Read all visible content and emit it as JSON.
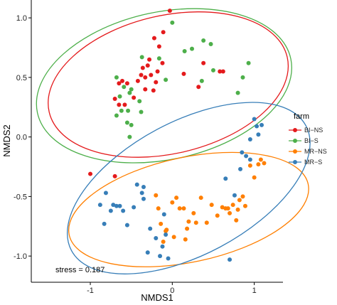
{
  "chart_data": {
    "type": "scatter",
    "xlabel": "NMDS1",
    "ylabel": "NMDS2",
    "xlim": [
      -1.72,
      1.35
    ],
    "ylim": [
      -1.22,
      1.15
    ],
    "x_ticks": [
      "-1",
      "0",
      "1"
    ],
    "y_ticks": [
      "1.0",
      "0.5",
      "0.0",
      "-0.5",
      "-1.0"
    ],
    "x_tick_values": [
      -1,
      0,
      1
    ],
    "y_tick_values": [
      1.0,
      0.5,
      0.0,
      -0.5,
      -1.0
    ],
    "grid": false,
    "legend": {
      "title": "farm",
      "placement": "right"
    },
    "annotation": "stress = 0.187",
    "series": [
      {
        "name": "BI−NS",
        "color": "#e41a1c",
        "points": [
          [
            -0.7,
            0.32
          ],
          [
            -0.65,
            0.45
          ],
          [
            -0.61,
            0.47
          ],
          [
            -0.55,
            0.45
          ],
          [
            -0.42,
            0.47
          ],
          [
            -0.38,
            0.52
          ],
          [
            -0.36,
            0.58
          ],
          [
            -0.33,
            0.5
          ],
          [
            -0.3,
            0.6
          ],
          [
            -0.28,
            0.65
          ],
          [
            -0.26,
            0.52
          ],
          [
            -0.23,
            0.39
          ],
          [
            -0.2,
            0.46
          ],
          [
            -0.18,
            0.55
          ],
          [
            -0.16,
            0.76
          ],
          [
            -0.12,
            0.62
          ],
          [
            -0.11,
            0.88
          ],
          [
            -0.03,
            1.06
          ],
          [
            -0.65,
            0.27
          ],
          [
            -0.58,
            0.27
          ],
          [
            -0.47,
            0.33
          ],
          [
            -0.33,
            0.4
          ],
          [
            0.14,
            0.53
          ],
          [
            0.32,
            0.42
          ],
          [
            0.38,
            0.62
          ],
          [
            0.58,
            0.55
          ],
          [
            0.62,
            0.55
          ],
          [
            -0.22,
            0.83
          ],
          [
            -1.0,
            -0.31
          ],
          [
            -0.7,
            -0.33
          ]
        ]
      },
      {
        "name": "BI−S",
        "color": "#4daf4a",
        "points": [
          [
            -0.68,
            0.5
          ],
          [
            -0.64,
            0.34
          ],
          [
            -0.62,
            0.22
          ],
          [
            -0.59,
            0.42
          ],
          [
            -0.54,
            0.22
          ],
          [
            -0.52,
            0.37
          ],
          [
            -0.5,
            0.4
          ],
          [
            -0.4,
            0.3
          ],
          [
            -0.38,
            0.21
          ],
          [
            -0.37,
            0.67
          ],
          [
            -0.16,
            0.66
          ],
          [
            -0.08,
            0.48
          ],
          [
            0.0,
            0.96
          ],
          [
            0.15,
            0.72
          ],
          [
            0.24,
            0.74
          ],
          [
            0.36,
            0.47
          ],
          [
            0.38,
            0.81
          ],
          [
            0.47,
            0.78
          ],
          [
            0.86,
            0.5
          ],
          [
            0.93,
            0.62
          ],
          [
            -0.68,
            0.18
          ],
          [
            -0.55,
            0.12
          ],
          [
            -0.52,
            0.0
          ],
          [
            0.5,
            0.56
          ],
          [
            0.8,
            0.37
          ],
          [
            -0.5,
            0.1
          ]
        ]
      },
      {
        "name": "MR−NS",
        "color": "#ff7f00",
        "points": [
          [
            -0.2,
            -0.49
          ],
          [
            -0.17,
            -0.6
          ],
          [
            -0.14,
            -0.73
          ],
          [
            -0.07,
            -0.78
          ],
          [
            0.0,
            -0.55
          ],
          [
            0.05,
            -0.51
          ],
          [
            0.09,
            -0.6
          ],
          [
            0.14,
            -0.6
          ],
          [
            0.16,
            -0.86
          ],
          [
            0.2,
            -0.71
          ],
          [
            0.26,
            -0.64
          ],
          [
            0.29,
            -0.72
          ],
          [
            0.35,
            -0.51
          ],
          [
            0.42,
            -0.72
          ],
          [
            0.48,
            -0.57
          ],
          [
            0.55,
            -0.66
          ],
          [
            0.61,
            -0.59
          ],
          [
            0.65,
            -0.6
          ],
          [
            0.68,
            -0.6
          ],
          [
            0.7,
            -0.64
          ],
          [
            0.74,
            -0.57
          ],
          [
            0.78,
            -0.7
          ],
          [
            0.8,
            -0.61
          ],
          [
            0.82,
            -0.53
          ],
          [
            0.86,
            -0.5
          ],
          [
            0.95,
            -0.24
          ],
          [
            1.0,
            -0.34
          ],
          [
            1.05,
            -0.23
          ],
          [
            1.08,
            -0.19
          ],
          [
            1.12,
            -0.22
          ],
          [
            0.89,
            -0.58
          ],
          [
            -0.08,
            -0.79
          ],
          [
            0.02,
            -0.84
          ],
          [
            -0.11,
            -0.88
          ],
          [
            0.18,
            -0.77
          ]
        ]
      },
      {
        "name": "MR−S",
        "color": "#377eb8",
        "points": [
          [
            -0.88,
            -0.57
          ],
          [
            -0.83,
            -0.73
          ],
          [
            -0.81,
            -0.47
          ],
          [
            -0.75,
            -0.62
          ],
          [
            -0.72,
            -0.57
          ],
          [
            -0.68,
            -0.58
          ],
          [
            -0.64,
            -0.58
          ],
          [
            -0.6,
            -0.62
          ],
          [
            -0.55,
            -0.74
          ],
          [
            -0.47,
            -0.59
          ],
          [
            -0.43,
            -0.4
          ],
          [
            -0.37,
            -0.47
          ],
          [
            -0.35,
            -0.42
          ],
          [
            -0.3,
            -0.97
          ],
          [
            -0.27,
            -0.77
          ],
          [
            -0.2,
            -0.85
          ],
          [
            -0.15,
            -1.0
          ],
          [
            -0.12,
            -0.92
          ],
          [
            -0.08,
            -0.82
          ],
          [
            -0.05,
            -1.02
          ],
          [
            0.85,
            -0.13
          ],
          [
            1.0,
            0.15
          ],
          [
            1.03,
            0.09
          ],
          [
            1.09,
            0.1
          ],
          [
            0.95,
            -0.02
          ],
          [
            0.9,
            -0.16
          ],
          [
            0.83,
            -0.27
          ],
          [
            0.95,
            -0.19
          ],
          [
            1.05,
            0.02
          ],
          [
            0.65,
            -0.35
          ],
          [
            0.76,
            -0.49
          ],
          [
            0.7,
            -1.03
          ],
          [
            -0.1,
            -0.65
          ],
          [
            -0.35,
            -0.52
          ]
        ]
      }
    ],
    "ellipses": [
      {
        "series": "BI−NS",
        "color": "#e41a1c",
        "cx": -0.05,
        "cy": 0.44,
        "rx": 1.49,
        "ry": 0.58,
        "angle_deg": 13
      },
      {
        "series": "BI−S",
        "color": "#4daf4a",
        "cx": -0.1,
        "cy": 0.43,
        "rx": 1.58,
        "ry": 0.62,
        "angle_deg": 12
      },
      {
        "series": "MR−NS",
        "color": "#ff7f00",
        "cx": 0.2,
        "cy": -0.61,
        "rx": 1.49,
        "ry": 0.44,
        "angle_deg": 12
      },
      {
        "series": "MR−S",
        "color": "#377eb8",
        "cx": 0.2,
        "cy": -0.43,
        "rx": 1.62,
        "ry": 0.56,
        "angle_deg": 28
      }
    ]
  }
}
